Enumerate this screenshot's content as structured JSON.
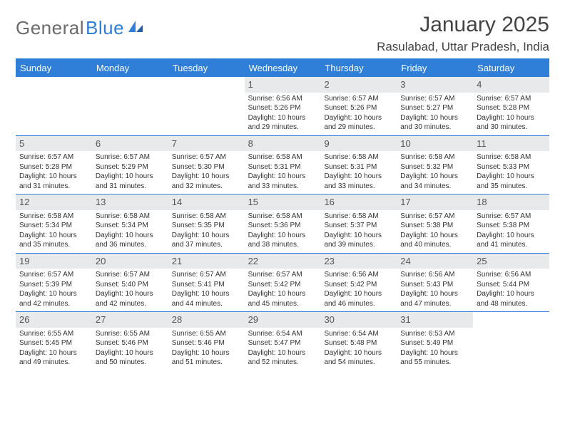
{
  "logo": {
    "text1": "General",
    "text2": "Blue"
  },
  "title": "January 2025",
  "location": "Rasulabad, Uttar Pradesh, India",
  "colors": {
    "brand": "#2f7ed8",
    "daynum_bg": "#e8e9ea",
    "text": "#333333",
    "muted": "#6b6b6b"
  },
  "weekdays": [
    "Sunday",
    "Monday",
    "Tuesday",
    "Wednesday",
    "Thursday",
    "Friday",
    "Saturday"
  ],
  "weeks": [
    [
      {
        "n": "",
        "sunrise": "",
        "sunset": "",
        "daylight": ""
      },
      {
        "n": "",
        "sunrise": "",
        "sunset": "",
        "daylight": ""
      },
      {
        "n": "",
        "sunrise": "",
        "sunset": "",
        "daylight": ""
      },
      {
        "n": "1",
        "sunrise": "Sunrise: 6:56 AM",
        "sunset": "Sunset: 5:26 PM",
        "daylight": "Daylight: 10 hours and 29 minutes."
      },
      {
        "n": "2",
        "sunrise": "Sunrise: 6:57 AM",
        "sunset": "Sunset: 5:26 PM",
        "daylight": "Daylight: 10 hours and 29 minutes."
      },
      {
        "n": "3",
        "sunrise": "Sunrise: 6:57 AM",
        "sunset": "Sunset: 5:27 PM",
        "daylight": "Daylight: 10 hours and 30 minutes."
      },
      {
        "n": "4",
        "sunrise": "Sunrise: 6:57 AM",
        "sunset": "Sunset: 5:28 PM",
        "daylight": "Daylight: 10 hours and 30 minutes."
      }
    ],
    [
      {
        "n": "5",
        "sunrise": "Sunrise: 6:57 AM",
        "sunset": "Sunset: 5:28 PM",
        "daylight": "Daylight: 10 hours and 31 minutes."
      },
      {
        "n": "6",
        "sunrise": "Sunrise: 6:57 AM",
        "sunset": "Sunset: 5:29 PM",
        "daylight": "Daylight: 10 hours and 31 minutes."
      },
      {
        "n": "7",
        "sunrise": "Sunrise: 6:57 AM",
        "sunset": "Sunset: 5:30 PM",
        "daylight": "Daylight: 10 hours and 32 minutes."
      },
      {
        "n": "8",
        "sunrise": "Sunrise: 6:58 AM",
        "sunset": "Sunset: 5:31 PM",
        "daylight": "Daylight: 10 hours and 33 minutes."
      },
      {
        "n": "9",
        "sunrise": "Sunrise: 6:58 AM",
        "sunset": "Sunset: 5:31 PM",
        "daylight": "Daylight: 10 hours and 33 minutes."
      },
      {
        "n": "10",
        "sunrise": "Sunrise: 6:58 AM",
        "sunset": "Sunset: 5:32 PM",
        "daylight": "Daylight: 10 hours and 34 minutes."
      },
      {
        "n": "11",
        "sunrise": "Sunrise: 6:58 AM",
        "sunset": "Sunset: 5:33 PM",
        "daylight": "Daylight: 10 hours and 35 minutes."
      }
    ],
    [
      {
        "n": "12",
        "sunrise": "Sunrise: 6:58 AM",
        "sunset": "Sunset: 5:34 PM",
        "daylight": "Daylight: 10 hours and 35 minutes."
      },
      {
        "n": "13",
        "sunrise": "Sunrise: 6:58 AM",
        "sunset": "Sunset: 5:34 PM",
        "daylight": "Daylight: 10 hours and 36 minutes."
      },
      {
        "n": "14",
        "sunrise": "Sunrise: 6:58 AM",
        "sunset": "Sunset: 5:35 PM",
        "daylight": "Daylight: 10 hours and 37 minutes."
      },
      {
        "n": "15",
        "sunrise": "Sunrise: 6:58 AM",
        "sunset": "Sunset: 5:36 PM",
        "daylight": "Daylight: 10 hours and 38 minutes."
      },
      {
        "n": "16",
        "sunrise": "Sunrise: 6:58 AM",
        "sunset": "Sunset: 5:37 PM",
        "daylight": "Daylight: 10 hours and 39 minutes."
      },
      {
        "n": "17",
        "sunrise": "Sunrise: 6:57 AM",
        "sunset": "Sunset: 5:38 PM",
        "daylight": "Daylight: 10 hours and 40 minutes."
      },
      {
        "n": "18",
        "sunrise": "Sunrise: 6:57 AM",
        "sunset": "Sunset: 5:38 PM",
        "daylight": "Daylight: 10 hours and 41 minutes."
      }
    ],
    [
      {
        "n": "19",
        "sunrise": "Sunrise: 6:57 AM",
        "sunset": "Sunset: 5:39 PM",
        "daylight": "Daylight: 10 hours and 42 minutes."
      },
      {
        "n": "20",
        "sunrise": "Sunrise: 6:57 AM",
        "sunset": "Sunset: 5:40 PM",
        "daylight": "Daylight: 10 hours and 42 minutes."
      },
      {
        "n": "21",
        "sunrise": "Sunrise: 6:57 AM",
        "sunset": "Sunset: 5:41 PM",
        "daylight": "Daylight: 10 hours and 44 minutes."
      },
      {
        "n": "22",
        "sunrise": "Sunrise: 6:57 AM",
        "sunset": "Sunset: 5:42 PM",
        "daylight": "Daylight: 10 hours and 45 minutes."
      },
      {
        "n": "23",
        "sunrise": "Sunrise: 6:56 AM",
        "sunset": "Sunset: 5:42 PM",
        "daylight": "Daylight: 10 hours and 46 minutes."
      },
      {
        "n": "24",
        "sunrise": "Sunrise: 6:56 AM",
        "sunset": "Sunset: 5:43 PM",
        "daylight": "Daylight: 10 hours and 47 minutes."
      },
      {
        "n": "25",
        "sunrise": "Sunrise: 6:56 AM",
        "sunset": "Sunset: 5:44 PM",
        "daylight": "Daylight: 10 hours and 48 minutes."
      }
    ],
    [
      {
        "n": "26",
        "sunrise": "Sunrise: 6:55 AM",
        "sunset": "Sunset: 5:45 PM",
        "daylight": "Daylight: 10 hours and 49 minutes."
      },
      {
        "n": "27",
        "sunrise": "Sunrise: 6:55 AM",
        "sunset": "Sunset: 5:46 PM",
        "daylight": "Daylight: 10 hours and 50 minutes."
      },
      {
        "n": "28",
        "sunrise": "Sunrise: 6:55 AM",
        "sunset": "Sunset: 5:46 PM",
        "daylight": "Daylight: 10 hours and 51 minutes."
      },
      {
        "n": "29",
        "sunrise": "Sunrise: 6:54 AM",
        "sunset": "Sunset: 5:47 PM",
        "daylight": "Daylight: 10 hours and 52 minutes."
      },
      {
        "n": "30",
        "sunrise": "Sunrise: 6:54 AM",
        "sunset": "Sunset: 5:48 PM",
        "daylight": "Daylight: 10 hours and 54 minutes."
      },
      {
        "n": "31",
        "sunrise": "Sunrise: 6:53 AM",
        "sunset": "Sunset: 5:49 PM",
        "daylight": "Daylight: 10 hours and 55 minutes."
      },
      {
        "n": "",
        "sunrise": "",
        "sunset": "",
        "daylight": ""
      }
    ]
  ]
}
